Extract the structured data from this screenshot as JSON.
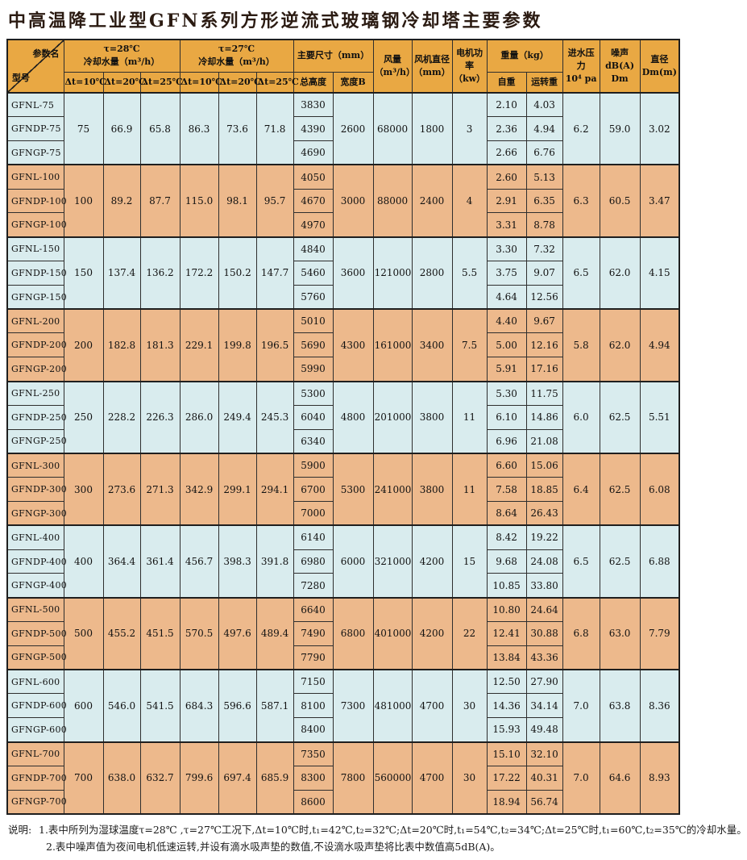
{
  "page_title": "中高温降工业型GFN系列方形逆流式玻璃钢冷却塔主要参数",
  "colors": {
    "header_bg": "#E9A843",
    "band_blue": "#D9ECEE",
    "band_orange": "#EDB98C",
    "border": "#2E2E2E",
    "frame": "#1F1F1F",
    "title_color": "#2B1B12"
  },
  "table": {
    "header": {
      "corner_top": "参数名",
      "corner_bottom": "型号",
      "w28": "τ=28℃\n冷却水量（m³/h）",
      "w27": "τ=27℃\n冷却水量（m³/h）",
      "delta_cols": [
        "Δt=10℃",
        "Δt=20℃",
        "Δt=25℃"
      ],
      "dims": "主要尺寸（mm）",
      "total_height": "总高度",
      "width_b": "宽度B",
      "airflow": "风量\n（m³/h）",
      "fan_diameter": "风机直径\n（mm）",
      "motor_power": "电机功率\n（kw）",
      "weight": "重量（kg）",
      "self_weight": "自重",
      "run_weight": "运转重",
      "inlet_pressure": "进水压力\n10⁴ pa",
      "noise": "噪声\ndB(A) Dm",
      "diameter": "直径\nDm(m)"
    },
    "groups": [
      {
        "models": [
          "GFNL-75",
          "GFNDP-75",
          "GFNGP-75"
        ],
        "w28": [
          "75",
          "66.9",
          "65.8"
        ],
        "w27": [
          "86.3",
          "73.6",
          "71.8"
        ],
        "heights": [
          "3830",
          "4390",
          "4690"
        ],
        "width_b": "2600",
        "airflow": "68000",
        "fan_diameter": "1800",
        "motor_power": "3",
        "self_weight": [
          "2.10",
          "2.36",
          "2.66"
        ],
        "run_weight": [
          "4.03",
          "4.94",
          "6.76"
        ],
        "inlet_pressure": "6.2",
        "noise": "59.0",
        "diameter": "3.02"
      },
      {
        "models": [
          "GFNL-100",
          "GFNDP-100",
          "GFNGP-100"
        ],
        "w28": [
          "100",
          "89.2",
          "87.7"
        ],
        "w27": [
          "115.0",
          "98.1",
          "95.7"
        ],
        "heights": [
          "4050",
          "4670",
          "4970"
        ],
        "width_b": "3000",
        "airflow": "88000",
        "fan_diameter": "2400",
        "motor_power": "4",
        "self_weight": [
          "2.60",
          "2.91",
          "3.31"
        ],
        "run_weight": [
          "5.13",
          "6.35",
          "8.78"
        ],
        "inlet_pressure": "6.3",
        "noise": "60.5",
        "diameter": "3.47"
      },
      {
        "models": [
          "GFNL-150",
          "GFNDP-150",
          "GFNGP-150"
        ],
        "w28": [
          "150",
          "137.4",
          "136.2"
        ],
        "w27": [
          "172.2",
          "150.2",
          "147.7"
        ],
        "heights": [
          "4840",
          "5460",
          "5760"
        ],
        "width_b": "3600",
        "airflow": "121000",
        "fan_diameter": "2800",
        "motor_power": "5.5",
        "self_weight": [
          "3.30",
          "3.75",
          "4.64"
        ],
        "run_weight": [
          "7.32",
          "9.07",
          "12.56"
        ],
        "inlet_pressure": "6.5",
        "noise": "62.0",
        "diameter": "4.15"
      },
      {
        "models": [
          "GFNL-200",
          "GFNDP-200",
          "GFNGP-200"
        ],
        "w28": [
          "200",
          "182.8",
          "181.3"
        ],
        "w27": [
          "229.1",
          "199.8",
          "196.5"
        ],
        "heights": [
          "5010",
          "5690",
          "5990"
        ],
        "width_b": "4300",
        "airflow": "161000",
        "fan_diameter": "3400",
        "motor_power": "7.5",
        "self_weight": [
          "4.40",
          "5.00",
          "5.91"
        ],
        "run_weight": [
          "9.67",
          "12.16",
          "17.16"
        ],
        "inlet_pressure": "5.8",
        "noise": "62.0",
        "diameter": "4.94"
      },
      {
        "models": [
          "GFNL-250",
          "GFNDP-250",
          "GFNGP-250"
        ],
        "w28": [
          "250",
          "228.2",
          "226.3"
        ],
        "w27": [
          "286.0",
          "249.4",
          "245.3"
        ],
        "heights": [
          "5300",
          "6040",
          "6340"
        ],
        "width_b": "4800",
        "airflow": "201000",
        "fan_diameter": "3800",
        "motor_power": "11",
        "self_weight": [
          "5.30",
          "6.10",
          "6.96"
        ],
        "run_weight": [
          "11.75",
          "14.86",
          "21.08"
        ],
        "inlet_pressure": "6.0",
        "noise": "62.5",
        "diameter": "5.51"
      },
      {
        "models": [
          "GFNL-300",
          "GFNDP-300",
          "GFNGP-300"
        ],
        "w28": [
          "300",
          "273.6",
          "271.3"
        ],
        "w27": [
          "342.9",
          "299.1",
          "294.1"
        ],
        "heights": [
          "5900",
          "6700",
          "7000"
        ],
        "width_b": "5300",
        "airflow": "241000",
        "fan_diameter": "3800",
        "motor_power": "11",
        "self_weight": [
          "6.60",
          "7.58",
          "8.64"
        ],
        "run_weight": [
          "15.06",
          "18.85",
          "26.43"
        ],
        "inlet_pressure": "6.4",
        "noise": "62.5",
        "diameter": "6.08"
      },
      {
        "models": [
          "GFNL-400",
          "GFNDP-400",
          "GFNGP-400"
        ],
        "w28": [
          "400",
          "364.4",
          "361.4"
        ],
        "w27": [
          "456.7",
          "398.3",
          "391.8"
        ],
        "heights": [
          "6140",
          "6980",
          "7280"
        ],
        "width_b": "6000",
        "airflow": "321000",
        "fan_diameter": "4200",
        "motor_power": "15",
        "self_weight": [
          "8.42",
          "9.68",
          "10.85"
        ],
        "run_weight": [
          "19.22",
          "24.08",
          "33.80"
        ],
        "inlet_pressure": "6.5",
        "noise": "62.5",
        "diameter": "6.88"
      },
      {
        "models": [
          "GFNL-500",
          "GFNDP-500",
          "GFNGP-500"
        ],
        "w28": [
          "500",
          "455.2",
          "451.5"
        ],
        "w27": [
          "570.5",
          "497.6",
          "489.4"
        ],
        "heights": [
          "6640",
          "7490",
          "7790"
        ],
        "width_b": "6800",
        "airflow": "401000",
        "fan_diameter": "4200",
        "motor_power": "22",
        "self_weight": [
          "10.80",
          "12.41",
          "13.84"
        ],
        "run_weight": [
          "24.64",
          "30.88",
          "43.36"
        ],
        "inlet_pressure": "6.8",
        "noise": "63.0",
        "diameter": "7.79"
      },
      {
        "models": [
          "GFNL-600",
          "GFNDP-600",
          "GFNGP-600"
        ],
        "w28": [
          "600",
          "546.0",
          "541.5"
        ],
        "w27": [
          "684.3",
          "596.6",
          "587.1"
        ],
        "heights": [
          "7150",
          "8100",
          "8400"
        ],
        "width_b": "7300",
        "airflow": "481000",
        "fan_diameter": "4700",
        "motor_power": "30",
        "self_weight": [
          "12.50",
          "14.36",
          "15.93"
        ],
        "run_weight": [
          "27.90",
          "34.14",
          "49.48"
        ],
        "inlet_pressure": "7.0",
        "noise": "63.8",
        "diameter": "8.36"
      },
      {
        "models": [
          "GFNL-700",
          "GFNDP-700",
          "GFNGP-700"
        ],
        "w28": [
          "700",
          "638.0",
          "632.7"
        ],
        "w27": [
          "799.6",
          "697.4",
          "685.9"
        ],
        "heights": [
          "7350",
          "8300",
          "8600"
        ],
        "width_b": "7800",
        "airflow": "560000",
        "fan_diameter": "4700",
        "motor_power": "30",
        "self_weight": [
          "15.10",
          "17.22",
          "18.94"
        ],
        "run_weight": [
          "32.10",
          "40.31",
          "56.74"
        ],
        "inlet_pressure": "7.0",
        "noise": "64.6",
        "diameter": "8.93"
      }
    ]
  },
  "notes": {
    "label": "说明:",
    "lines": [
      "1.表中所列为湿球温度τ=28℃ ,τ=27℃工况下,Δt=10℃时,t₁=42℃,t₂=32℃;Δt=20℃时,t₁=54℃,t₂=34℃;Δt=25℃时,t₁=60℃,t₂=35℃的冷却水量。",
      "2.表中噪声值为夜间电机低速运转,并设有滴水吸声垫的数值,不设滴水吸声垫将比表中数值高5dB(A)。"
    ]
  }
}
